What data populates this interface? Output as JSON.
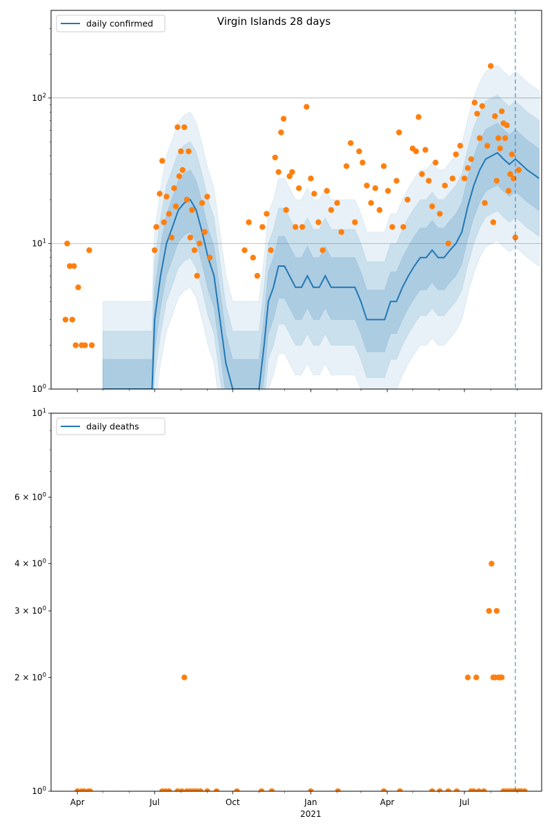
{
  "chart_data": [
    {
      "type": "line",
      "title": "Virgin Islands 28 days",
      "scale_y": "log",
      "ylim": [
        1,
        400
      ],
      "xlim": [
        "2020-03-01",
        "2021-09-30"
      ],
      "grid": "horizontal at decades",
      "legend_position": "top-left",
      "x_ticks": [
        "Apr",
        "Jul",
        "Oct",
        "Jan",
        "Apr",
        "Jul"
      ],
      "x_tick_dates": [
        "2020-04-01",
        "2020-07-01",
        "2020-10-01",
        "2021-01-01",
        "2021-04-01",
        "2021-07-01"
      ],
      "year_label": "2021",
      "y_ticks": [
        {
          "value": 1,
          "base": "10",
          "exp": "0"
        },
        {
          "value": 10,
          "base": "10",
          "exp": "1"
        },
        {
          "value": 100,
          "base": "10",
          "exp": "2"
        }
      ],
      "vline_date": "2021-08-30",
      "series": [
        {
          "name": "daily confirmed",
          "color": "#1f77b4",
          "points": [
            [
              "2020-05-01",
              1
            ],
            [
              "2020-06-28",
              1
            ],
            [
              "2020-07-01",
              3
            ],
            [
              "2020-07-08",
              6
            ],
            [
              "2020-07-15",
              10
            ],
            [
              "2020-07-22",
              13
            ],
            [
              "2020-07-29",
              17
            ],
            [
              "2020-08-05",
              19
            ],
            [
              "2020-08-12",
              20
            ],
            [
              "2020-08-19",
              17
            ],
            [
              "2020-08-26",
              12
            ],
            [
              "2020-09-02",
              8
            ],
            [
              "2020-09-09",
              6
            ],
            [
              "2020-09-16",
              3
            ],
            [
              "2020-09-23",
              1.5
            ],
            [
              "2020-10-01",
              1
            ],
            [
              "2020-11-01",
              1
            ],
            [
              "2020-11-07",
              2
            ],
            [
              "2020-11-12",
              4
            ],
            [
              "2020-11-18",
              5
            ],
            [
              "2020-11-24",
              7
            ],
            [
              "2020-12-01",
              7
            ],
            [
              "2020-12-07",
              6
            ],
            [
              "2020-12-14",
              5
            ],
            [
              "2020-12-21",
              5
            ],
            [
              "2020-12-28",
              6
            ],
            [
              "2021-01-04",
              5
            ],
            [
              "2021-01-11",
              5
            ],
            [
              "2021-01-18",
              6
            ],
            [
              "2021-01-25",
              5
            ],
            [
              "2021-02-01",
              5
            ],
            [
              "2021-02-08",
              5
            ],
            [
              "2021-02-15",
              5
            ],
            [
              "2021-02-22",
              5
            ],
            [
              "2021-03-01",
              4
            ],
            [
              "2021-03-08",
              3
            ],
            [
              "2021-03-15",
              3
            ],
            [
              "2021-03-22",
              3
            ],
            [
              "2021-03-29",
              3
            ],
            [
              "2021-04-05",
              4
            ],
            [
              "2021-04-12",
              4
            ],
            [
              "2021-04-19",
              5
            ],
            [
              "2021-04-26",
              6
            ],
            [
              "2021-05-03",
              7
            ],
            [
              "2021-05-10",
              8
            ],
            [
              "2021-05-17",
              8
            ],
            [
              "2021-05-24",
              9
            ],
            [
              "2021-05-31",
              8
            ],
            [
              "2021-06-07",
              8
            ],
            [
              "2021-06-14",
              9
            ],
            [
              "2021-06-21",
              10
            ],
            [
              "2021-06-28",
              12
            ],
            [
              "2021-07-05",
              18
            ],
            [
              "2021-07-12",
              25
            ],
            [
              "2021-07-19",
              32
            ],
            [
              "2021-07-26",
              38
            ],
            [
              "2021-08-02",
              40
            ],
            [
              "2021-08-09",
              42
            ],
            [
              "2021-08-16",
              38
            ],
            [
              "2021-08-23",
              35
            ],
            [
              "2021-08-30",
              38
            ],
            [
              "2021-09-06",
              35
            ],
            [
              "2021-09-13",
              32
            ],
            [
              "2021-09-20",
              30
            ],
            [
              "2021-09-27",
              28
            ]
          ]
        },
        {
          "name": "",
          "color": "#ff7f0e",
          "points": [
            [
              "2020-03-18",
              3
            ],
            [
              "2020-03-20",
              10
            ],
            [
              "2020-03-23",
              7
            ],
            [
              "2020-03-26",
              3
            ],
            [
              "2020-03-28",
              7
            ],
            [
              "2020-03-30",
              2
            ],
            [
              "2020-04-02",
              5
            ],
            [
              "2020-04-06",
              2
            ],
            [
              "2020-04-10",
              2
            ],
            [
              "2020-04-15",
              9
            ],
            [
              "2020-04-18",
              2
            ],
            [
              "2020-07-01",
              9
            ],
            [
              "2020-07-03",
              13
            ],
            [
              "2020-07-07",
              22
            ],
            [
              "2020-07-10",
              37
            ],
            [
              "2020-07-12",
              14
            ],
            [
              "2020-07-15",
              21
            ],
            [
              "2020-07-18",
              16
            ],
            [
              "2020-07-21",
              11
            ],
            [
              "2020-07-24",
              24
            ],
            [
              "2020-07-26",
              18
            ],
            [
              "2020-07-28",
              63
            ],
            [
              "2020-07-30",
              29
            ],
            [
              "2020-08-01",
              43
            ],
            [
              "2020-08-03",
              32
            ],
            [
              "2020-08-05",
              63
            ],
            [
              "2020-08-08",
              20
            ],
            [
              "2020-08-10",
              43
            ],
            [
              "2020-08-12",
              11
            ],
            [
              "2020-08-14",
              17
            ],
            [
              "2020-08-17",
              9
            ],
            [
              "2020-08-20",
              6
            ],
            [
              "2020-08-23",
              10
            ],
            [
              "2020-08-26",
              19
            ],
            [
              "2020-08-29",
              12
            ],
            [
              "2020-09-01",
              21
            ],
            [
              "2020-09-04",
              8
            ],
            [
              "2020-10-15",
              9
            ],
            [
              "2020-10-20",
              14
            ],
            [
              "2020-10-25",
              8
            ],
            [
              "2020-10-30",
              6
            ],
            [
              "2020-11-05",
              13
            ],
            [
              "2020-11-10",
              16
            ],
            [
              "2020-11-15",
              9
            ],
            [
              "2020-11-20",
              39
            ],
            [
              "2020-11-24",
              31
            ],
            [
              "2020-11-27",
              58
            ],
            [
              "2020-11-30",
              72
            ],
            [
              "2020-12-03",
              17
            ],
            [
              "2020-12-07",
              29
            ],
            [
              "2020-12-10",
              31
            ],
            [
              "2020-12-14",
              13
            ],
            [
              "2020-12-18",
              24
            ],
            [
              "2020-12-22",
              13
            ],
            [
              "2020-12-27",
              87
            ],
            [
              "2021-01-01",
              28
            ],
            [
              "2021-01-05",
              22
            ],
            [
              "2021-01-10",
              14
            ],
            [
              "2021-01-15",
              9
            ],
            [
              "2021-01-20",
              23
            ],
            [
              "2021-01-25",
              17
            ],
            [
              "2021-02-01",
              19
            ],
            [
              "2021-02-06",
              12
            ],
            [
              "2021-02-12",
              34
            ],
            [
              "2021-02-17",
              49
            ],
            [
              "2021-02-22",
              14
            ],
            [
              "2021-02-27",
              43
            ],
            [
              "2021-03-03",
              36
            ],
            [
              "2021-03-08",
              25
            ],
            [
              "2021-03-13",
              19
            ],
            [
              "2021-03-18",
              24
            ],
            [
              "2021-03-23",
              17
            ],
            [
              "2021-03-28",
              34
            ],
            [
              "2021-04-02",
              23
            ],
            [
              "2021-04-07",
              13
            ],
            [
              "2021-04-12",
              27
            ],
            [
              "2021-04-15",
              58
            ],
            [
              "2021-04-20",
              13
            ],
            [
              "2021-04-25",
              20
            ],
            [
              "2021-05-01",
              45
            ],
            [
              "2021-05-05",
              43
            ],
            [
              "2021-05-08",
              74
            ],
            [
              "2021-05-12",
              30
            ],
            [
              "2021-05-16",
              44
            ],
            [
              "2021-05-20",
              27
            ],
            [
              "2021-05-24",
              18
            ],
            [
              "2021-05-28",
              36
            ],
            [
              "2021-06-02",
              16
            ],
            [
              "2021-06-08",
              25
            ],
            [
              "2021-06-12",
              10
            ],
            [
              "2021-06-17",
              28
            ],
            [
              "2021-06-21",
              41
            ],
            [
              "2021-06-26",
              47
            ],
            [
              "2021-07-01",
              28
            ],
            [
              "2021-07-05",
              33
            ],
            [
              "2021-07-09",
              38
            ],
            [
              "2021-07-13",
              93
            ],
            [
              "2021-07-16",
              78
            ],
            [
              "2021-07-19",
              53
            ],
            [
              "2021-07-22",
              88
            ],
            [
              "2021-07-25",
              19
            ],
            [
              "2021-07-28",
              47
            ],
            [
              "2021-08-01",
              166
            ],
            [
              "2021-08-04",
              14
            ],
            [
              "2021-08-06",
              75
            ],
            [
              "2021-08-08",
              27
            ],
            [
              "2021-08-10",
              53
            ],
            [
              "2021-08-12",
              45
            ],
            [
              "2021-08-14",
              81
            ],
            [
              "2021-08-16",
              67
            ],
            [
              "2021-08-18",
              53
            ],
            [
              "2021-08-20",
              65
            ],
            [
              "2021-08-22",
              23
            ],
            [
              "2021-08-24",
              30
            ],
            [
              "2021-08-26",
              41
            ],
            [
              "2021-08-28",
              28
            ],
            [
              "2021-08-30",
              11
            ],
            [
              "2021-09-03",
              32
            ]
          ]
        }
      ]
    },
    {
      "type": "scatter",
      "scale_y": "log",
      "ylim": [
        1,
        10
      ],
      "xlim": [
        "2020-03-01",
        "2021-09-30"
      ],
      "legend_position": "top-left",
      "x_ticks": [
        "Apr",
        "Jul",
        "Oct",
        "Jan",
        "Apr",
        "Jul"
      ],
      "x_tick_dates": [
        "2020-04-01",
        "2020-07-01",
        "2020-10-01",
        "2021-01-01",
        "2021-04-01",
        "2021-07-01"
      ],
      "year_label": "2021",
      "y_ticks": [
        {
          "value": 1,
          "base": "10",
          "exp": "0",
          "prefix": ""
        },
        {
          "value": 2,
          "base": "10",
          "exp": "0",
          "prefix": "2 × "
        },
        {
          "value": 3,
          "base": "10",
          "exp": "0",
          "prefix": "3 × "
        },
        {
          "value": 4,
          "base": "10",
          "exp": "0",
          "prefix": "4 × "
        },
        {
          "value": 6,
          "base": "10",
          "exp": "0",
          "prefix": "6 × "
        },
        {
          "value": 10,
          "base": "10",
          "exp": "1",
          "prefix": ""
        }
      ],
      "vline_date": "2021-08-30",
      "series": [
        {
          "name": "daily deaths",
          "color": "#1f77b4",
          "points": []
        },
        {
          "name": "",
          "color": "#ff7f0e",
          "points": [
            [
              "2020-04-01",
              1
            ],
            [
              "2020-04-06",
              1
            ],
            [
              "2020-04-09",
              1
            ],
            [
              "2020-04-14",
              1
            ],
            [
              "2020-04-16",
              1
            ],
            [
              "2020-07-10",
              1
            ],
            [
              "2020-07-14",
              1
            ],
            [
              "2020-07-18",
              1
            ],
            [
              "2020-07-28",
              1
            ],
            [
              "2020-08-02",
              1
            ],
            [
              "2020-08-05",
              2
            ],
            [
              "2020-08-08",
              1
            ],
            [
              "2020-08-12",
              1
            ],
            [
              "2020-08-16",
              1
            ],
            [
              "2020-08-20",
              1
            ],
            [
              "2020-08-24",
              1
            ],
            [
              "2020-09-01",
              1
            ],
            [
              "2020-09-12",
              1
            ],
            [
              "2020-10-06",
              1
            ],
            [
              "2020-11-04",
              1
            ],
            [
              "2020-11-16",
              1
            ],
            [
              "2021-01-01",
              1
            ],
            [
              "2021-02-02",
              1
            ],
            [
              "2021-03-28",
              1
            ],
            [
              "2021-04-16",
              1
            ],
            [
              "2021-05-24",
              1
            ],
            [
              "2021-06-02",
              1
            ],
            [
              "2021-06-12",
              1
            ],
            [
              "2021-06-22",
              1
            ],
            [
              "2021-07-05",
              2
            ],
            [
              "2021-07-09",
              1
            ],
            [
              "2021-07-12",
              1
            ],
            [
              "2021-07-15",
              2
            ],
            [
              "2021-07-18",
              1
            ],
            [
              "2021-07-24",
              1
            ],
            [
              "2021-07-30",
              3
            ],
            [
              "2021-08-02",
              4
            ],
            [
              "2021-08-04",
              2
            ],
            [
              "2021-08-06",
              2
            ],
            [
              "2021-08-08",
              3
            ],
            [
              "2021-08-10",
              2
            ],
            [
              "2021-08-12",
              2
            ],
            [
              "2021-08-14",
              2
            ],
            [
              "2021-08-16",
              1
            ],
            [
              "2021-08-20",
              1
            ],
            [
              "2021-08-24",
              1
            ],
            [
              "2021-08-28",
              1
            ],
            [
              "2021-08-30",
              1
            ],
            [
              "2021-09-03",
              1
            ],
            [
              "2021-09-06",
              1
            ],
            [
              "2021-09-10",
              1
            ]
          ]
        }
      ]
    }
  ]
}
